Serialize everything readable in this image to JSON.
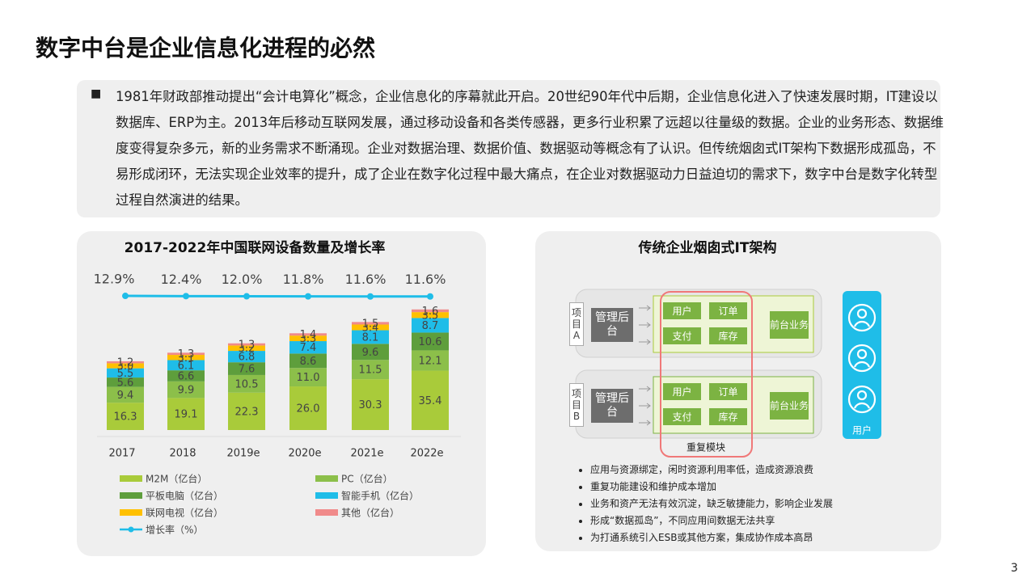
{
  "title": "数字中台是企业信息化进程的必然",
  "intro": "1981年财政部推动提出“会计电算化”概念，企业信息化的序幕就此开启。20世纪90年代中后期，企业信息化进入了快速发展时期，IT建设以数据库、ERP为主。2013年后移动互联网发展，通过移动设备和各类传感器，更多行业积累了远超以往量级的数据。企业的业务形态、数据维度变得复杂多元，新的业务需求不断涌现。企业对数据治理、数据价值、数据驱动等概念有了认识。但传统烟囱式IT架构下数据形成孤岛，不易形成闭环，无法实现企业效率的提升，成了企业在数字化过程中最大痛点，在企业对数据驱动力日益迫切的需求下，数字中台是数字化转型过程自然演进的结果。",
  "chart_data": {
    "type": "bar",
    "stacked": true,
    "title": "2017-2022年中国联网设备数量及增长率",
    "categories": [
      "2017",
      "2018",
      "2019e",
      "2020e",
      "2021e",
      "2022e"
    ],
    "ylim": [
      0,
      80
    ],
    "y2lim": [
      -300,
      13
    ],
    "series": [
      {
        "name": "M2M（亿台）",
        "color": "#a9cb3a",
        "values": [
          16.3,
          19.1,
          22.3,
          26.0,
          30.3,
          35.4
        ],
        "value_labels": [
          "16.3",
          "19.1",
          "22.3",
          "26.0",
          "30.3",
          "35.4"
        ]
      },
      {
        "name": "PC（亿台）",
        "color": "#8cbf4a",
        "values": [
          9.4,
          9.9,
          10.5,
          11.0,
          11.5,
          12.1
        ],
        "value_labels": [
          "9.4",
          "9.9",
          "10.5",
          "11.0",
          "11.5",
          "12.1"
        ]
      },
      {
        "name": "平板电脑（亿台）",
        "color": "#5e9e3c",
        "values": [
          5.6,
          6.6,
          7.6,
          8.6,
          9.6,
          10.6
        ],
        "value_labels": [
          "5.6",
          "6.6",
          "7.6",
          "8.6",
          "9.6",
          "10.6"
        ]
      },
      {
        "name": "智能手机（亿台）",
        "color": "#1fbde8",
        "values": [
          5.5,
          6.1,
          6.8,
          7.4,
          8.1,
          8.7
        ],
        "value_labels": [
          "5.5",
          "6.1",
          "6.8",
          "7.4",
          "8.1",
          "8.7"
        ]
      },
      {
        "name": "联网电视（亿台）",
        "color": "#ffc000",
        "values": [
          3.0,
          3.1,
          3.2,
          3.3,
          3.4,
          3.5
        ],
        "value_labels": [
          "3.0",
          "3.1",
          "3.2",
          "3.3",
          "3.4",
          "3.5"
        ]
      },
      {
        "name": "其他（亿台）",
        "color": "#f08a8a",
        "values": [
          1.2,
          1.3,
          1.3,
          1.4,
          1.5,
          1.6
        ],
        "value_labels": [
          "1.2",
          "1.3",
          "1.3",
          "1.4",
          "1.5",
          "1.6"
        ]
      },
      {
        "name": "增长率（%）",
        "color": "#1fbde8",
        "type": "line",
        "axis": "y2",
        "values": [
          12.9,
          12.4,
          12.0,
          11.8,
          11.6,
          11.6
        ],
        "value_labels": [
          "12.9%",
          "12.4%",
          "12.0%",
          "11.8%",
          "11.6%",
          "11.6%"
        ]
      }
    ]
  },
  "diagram": {
    "title": "传统企业烟囱式IT架构",
    "rows": [
      {
        "label": "项目A",
        "backend": "管理后台",
        "modules": [
          "用户",
          "订单",
          "支付",
          "库存"
        ],
        "frontend": "前台业务"
      },
      {
        "label": "项目B",
        "backend": "管理后台",
        "modules": [
          "用户",
          "订单",
          "支付",
          "库存"
        ],
        "frontend": "前台业务"
      }
    ],
    "repeat_label": "重复模块",
    "user_label": "用户",
    "bullets": [
      "应用与资源绑定，闲时资源利用率低，造成资源浪费",
      "重复功能建设和维护成本增加",
      "业务和资产无法有效沉淀，缺乏敏捷能力，影响企业发展",
      "形成“数据孤岛”，不同应用间数据无法共享",
      "为打通系统引入ESB或其他方案，集成协作成本高昂"
    ]
  },
  "page_number": "3"
}
